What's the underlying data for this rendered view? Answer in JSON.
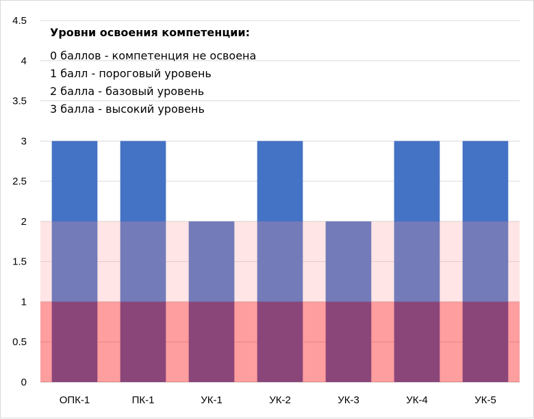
{
  "chart_data": {
    "type": "bar",
    "categories": [
      "ОПК-1",
      "ПК-1",
      "УК-1",
      "УК-2",
      "УК-3",
      "УК-4",
      "УК-5"
    ],
    "values": [
      3,
      3,
      2,
      3,
      2,
      3,
      3
    ],
    "ylim": [
      0,
      4.5
    ],
    "yticks": [
      "0",
      "0.5",
      "1",
      "1.5",
      "2",
      "2.5",
      "3",
      "3.5",
      "4",
      "4.5"
    ],
    "grid": true,
    "bar_color": "#4472c4",
    "bands": [
      {
        "from": 0,
        "to": 1,
        "color": "#ff0000"
      },
      {
        "from": 1,
        "to": 2,
        "color": "#ff9999"
      }
    ],
    "annotation": {
      "title": "Уровни освоения компетенции:",
      "lines": [
        "0 баллов - компетенция не освоена",
        "1 балл - пороговый уровень",
        "2 балла - базовый уровень",
        "3 балла - высокий уровень"
      ]
    }
  }
}
